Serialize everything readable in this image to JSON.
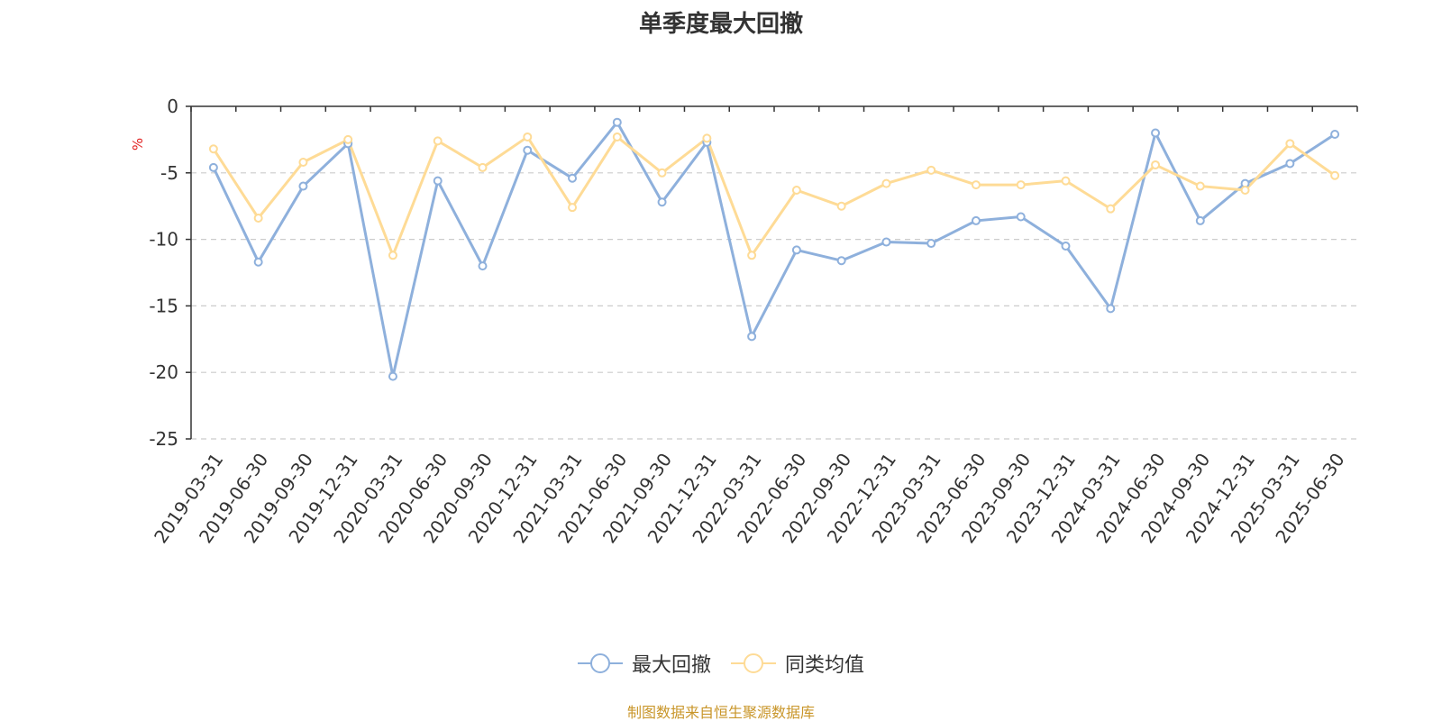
{
  "title": "单季度最大回撤",
  "source_text": "制图数据来自恒生聚源数据库",
  "colors": {
    "series1": "#8eb0dc",
    "series2": "#fedb96",
    "source": "#c9962a",
    "yunit": "#e02020",
    "grid": "#cccccc",
    "axis": "#333333"
  },
  "chart_data": {
    "type": "line",
    "title": "单季度最大回撤",
    "xlabel": "",
    "ylabel": "%",
    "ylim": [
      -25,
      0
    ],
    "yticks": [
      0,
      -5,
      -10,
      -15,
      -20,
      -25
    ],
    "grid": "horizontal-dashed",
    "legend_position": "bottom-center",
    "x": [
      "2019-03-31",
      "2019-06-30",
      "2019-09-30",
      "2019-12-31",
      "2020-03-31",
      "2020-06-30",
      "2020-09-30",
      "2020-12-31",
      "2021-03-31",
      "2021-06-30",
      "2021-09-30",
      "2021-12-31",
      "2022-03-31",
      "2022-06-30",
      "2022-09-30",
      "2022-12-31",
      "2023-03-31",
      "2023-06-30",
      "2023-09-30",
      "2023-12-31",
      "2024-03-31",
      "2024-06-30",
      "2024-09-30",
      "2024-12-31",
      "2025-03-31",
      "2025-06-30"
    ],
    "series": [
      {
        "name": "最大回撤",
        "values": [
          -4.6,
          -11.7,
          -6.0,
          -2.8,
          -20.3,
          -5.6,
          -12.0,
          -3.3,
          -5.4,
          -1.2,
          -7.2,
          -2.7,
          -17.3,
          -10.8,
          -11.6,
          -10.2,
          -10.3,
          -8.6,
          -8.3,
          -10.5,
          -15.2,
          -2.0,
          -8.6,
          -5.8,
          -4.3,
          -2.1
        ]
      },
      {
        "name": "同类均值",
        "values": [
          -3.2,
          -8.4,
          -4.2,
          -2.5,
          -11.2,
          -2.6,
          -4.6,
          -2.3,
          -7.6,
          -2.3,
          -5.0,
          -2.4,
          -11.2,
          -6.3,
          -7.5,
          -5.8,
          -4.8,
          -5.9,
          -5.9,
          -5.6,
          -7.7,
          -4.4,
          -6.0,
          -6.3,
          -2.8,
          -5.2
        ]
      }
    ]
  }
}
